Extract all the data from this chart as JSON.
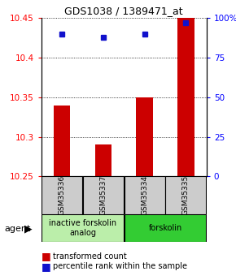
{
  "title": "GDS1038 / 1389471_at",
  "samples": [
    "GSM35336",
    "GSM35337",
    "GSM35334",
    "GSM35335"
  ],
  "bar_values": [
    10.34,
    10.29,
    10.35,
    10.45
  ],
  "percentile_values": [
    90,
    88,
    90,
    97
  ],
  "y_min": 10.25,
  "y_max": 10.45,
  "y_ticks": [
    10.25,
    10.3,
    10.35,
    10.4,
    10.45
  ],
  "y_right_ticks": [
    0,
    25,
    50,
    75,
    100
  ],
  "bar_color": "#cc0000",
  "dot_color": "#1111cc",
  "groups": [
    {
      "label": "inactive forskolin\nanalog",
      "span": [
        0,
        2
      ],
      "color": "#bbeeaa"
    },
    {
      "label": "forskolin",
      "span": [
        2,
        4
      ],
      "color": "#33cc33"
    }
  ],
  "agent_label": "agent",
  "legend_bar_label": "transformed count",
  "legend_dot_label": "percentile rank within the sample",
  "bar_width": 0.4,
  "background_color": "#ffffff",
  "sample_box_color": "#cccccc",
  "sample_label_fontsize": 6.5,
  "group_label_fontsize": 7.0,
  "title_fontsize": 9
}
